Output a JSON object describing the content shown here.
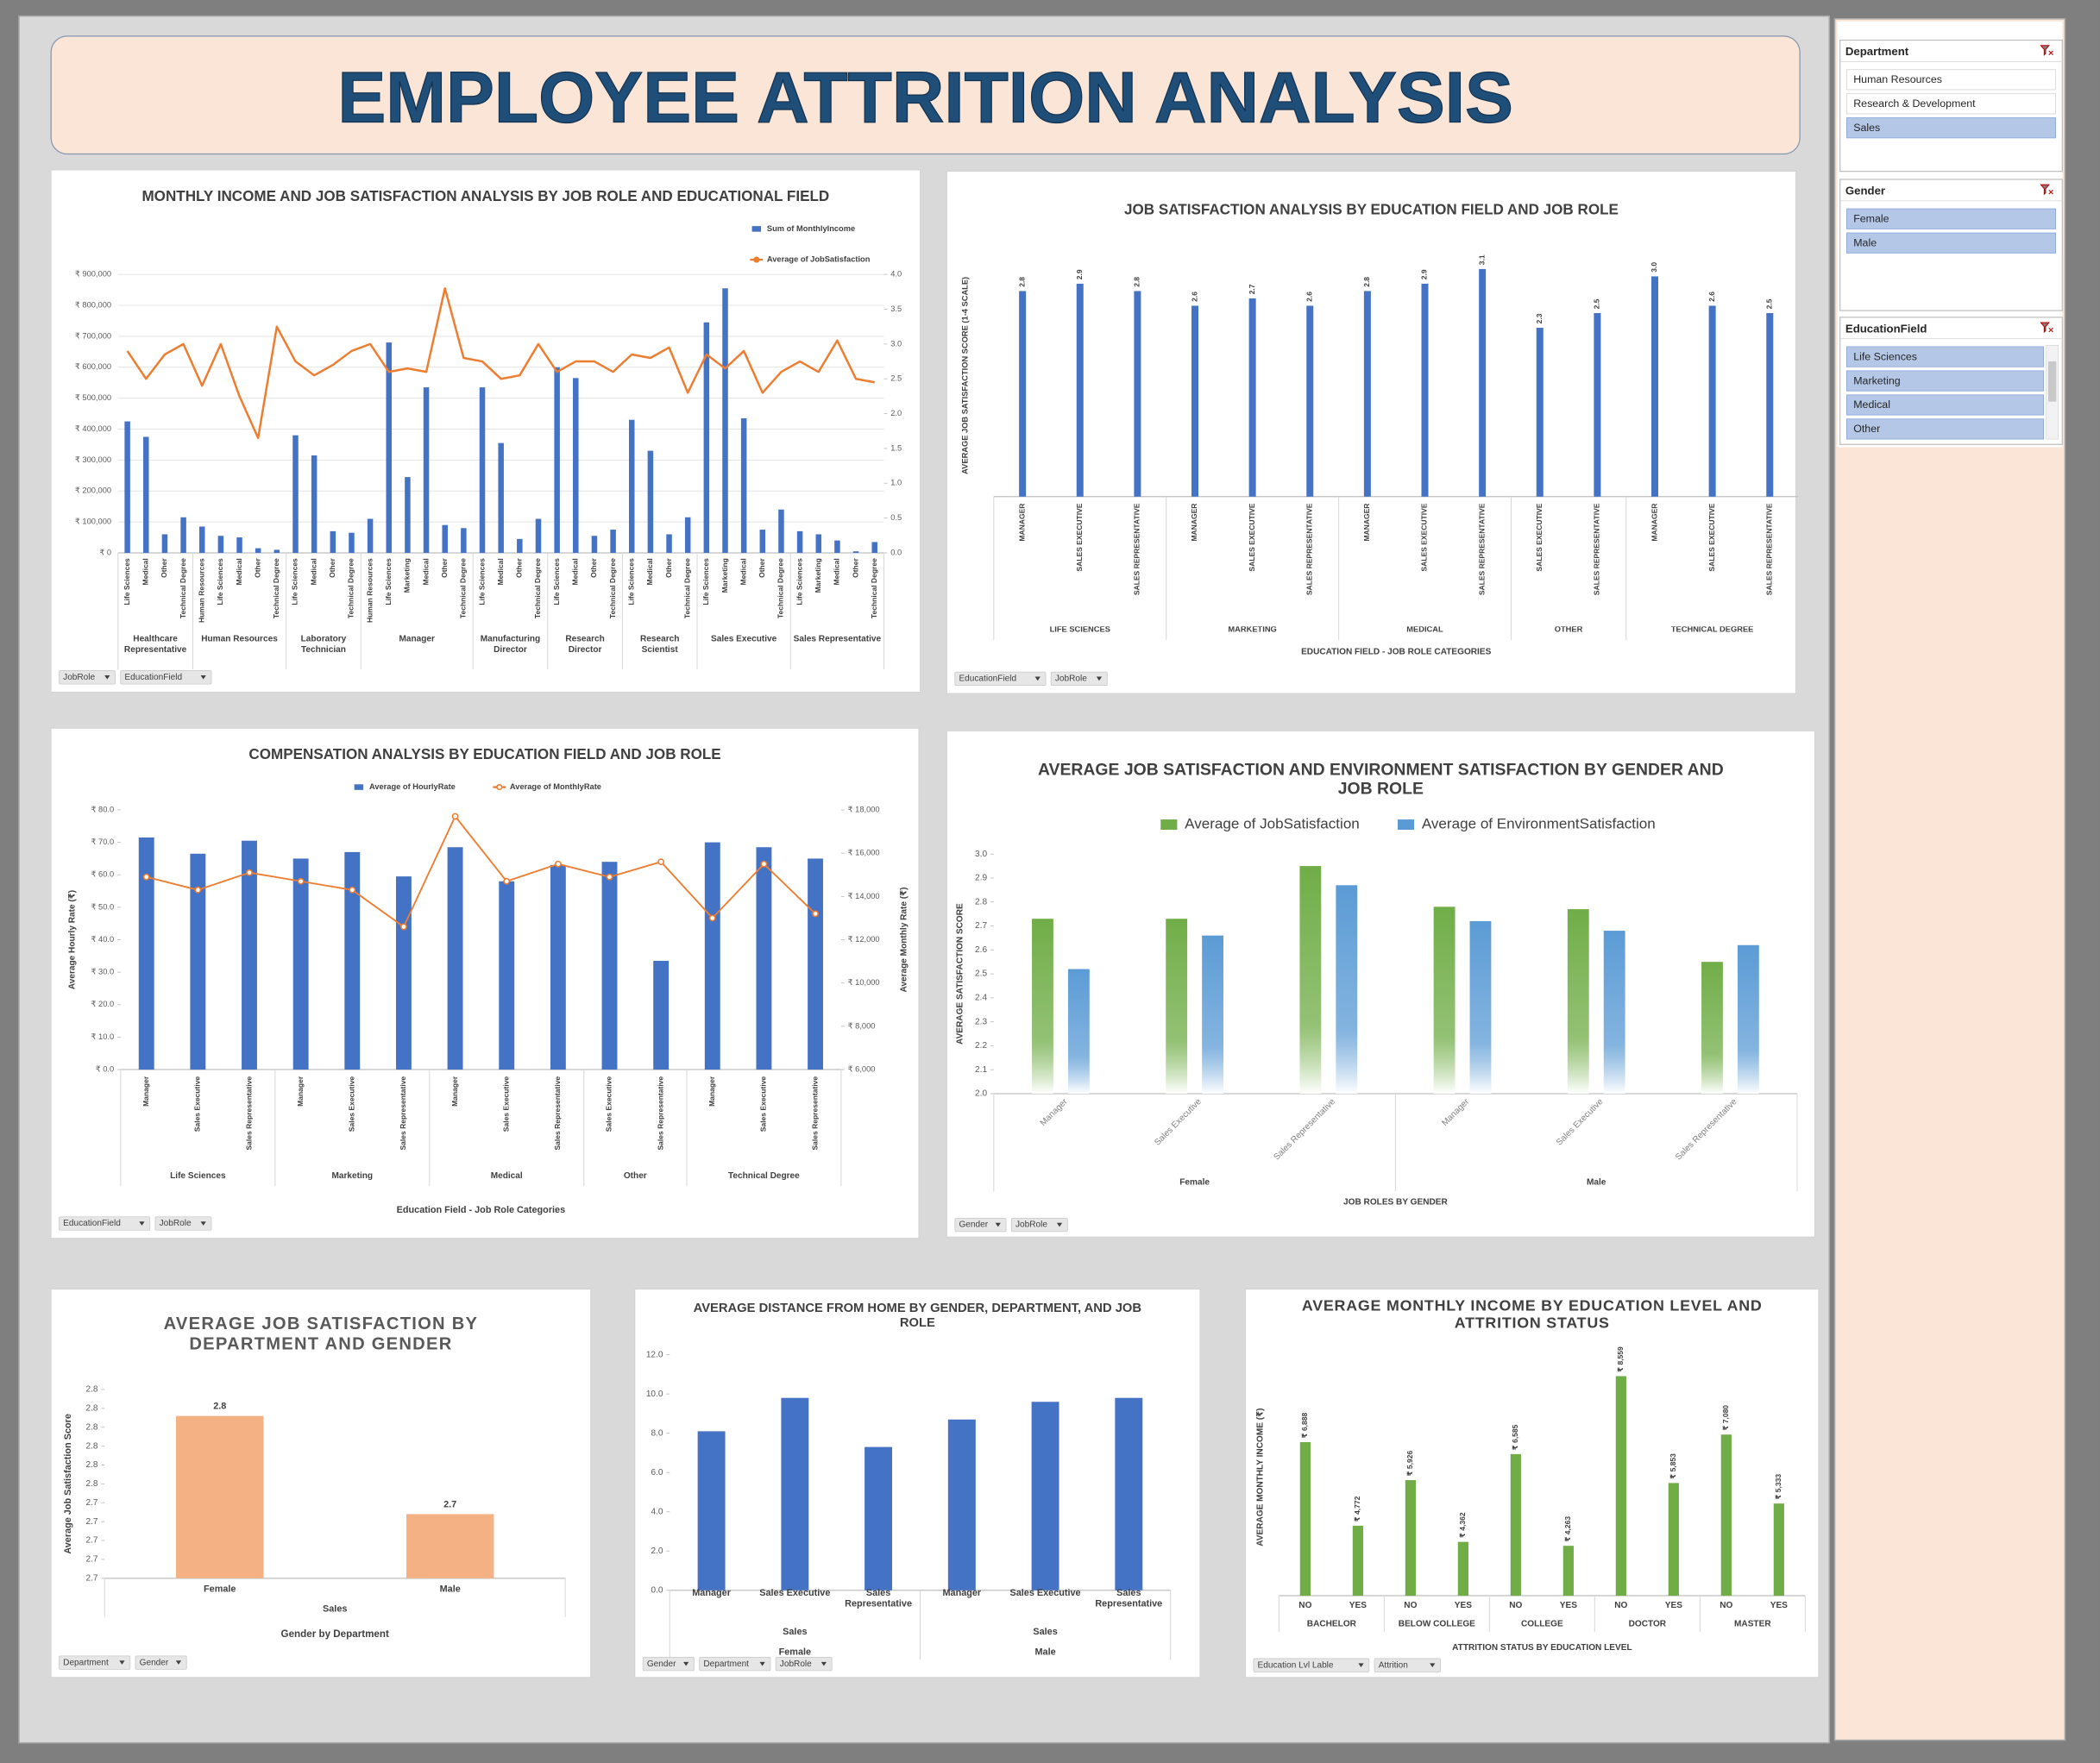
{
  "header": {
    "title": "EMPLOYEE ATTRITION ANALYSIS"
  },
  "slicers": [
    {
      "title": "Department",
      "items": [
        {
          "label": "Human Resources",
          "selected": false
        },
        {
          "label": "Research & Development",
          "selected": false
        },
        {
          "label": "Sales",
          "selected": true
        }
      ]
    },
    {
      "title": "Gender",
      "items": [
        {
          "label": "Female",
          "selected": true
        },
        {
          "label": "Male",
          "selected": true
        }
      ]
    },
    {
      "title": "EducationField",
      "items": [
        {
          "label": "Life Sciences",
          "selected": true
        },
        {
          "label": "Marketing",
          "selected": true
        },
        {
          "label": "Medical",
          "selected": true
        },
        {
          "label": "Other",
          "selected": true
        }
      ]
    }
  ],
  "chart_data": [
    {
      "type": "combo",
      "title": "MONTHLY INCOME AND JOB SATISFACTION ANALYSIS BY JOB ROLE AND EDUCATIONAL FIELD",
      "groups": [
        {
          "name": "Healthcare Representative",
          "categories": [
            "Life Sciences",
            "Medical",
            "Other",
            "Technical Degree"
          ]
        },
        {
          "name": "Human Resources",
          "categories": [
            "Human Resources",
            "Life Sciences",
            "Medical",
            "Other",
            "Technical Degree"
          ]
        },
        {
          "name": "Laboratory Technician",
          "categories": [
            "Life Sciences",
            "Medical",
            "Other",
            "Technical Degree"
          ]
        },
        {
          "name": "Manager",
          "categories": [
            "Human Resources",
            "Life Sciences",
            "Marketing",
            "Medical",
            "Other",
            "Technical Degree"
          ]
        },
        {
          "name": "Manufacturing Director",
          "categories": [
            "Life Sciences",
            "Medical",
            "Other",
            "Technical Degree"
          ]
        },
        {
          "name": "Research Director",
          "categories": [
            "Life Sciences",
            "Medical",
            "Other",
            "Technical Degree"
          ]
        },
        {
          "name": "Research Scientist",
          "categories": [
            "Life Sciences",
            "Medical",
            "Other",
            "Technical Degree"
          ]
        },
        {
          "name": "Sales Executive",
          "categories": [
            "Life Sciences",
            "Marketing",
            "Medical",
            "Other",
            "Technical Degree"
          ]
        },
        {
          "name": "Sales Representative",
          "categories": [
            "Life Sciences",
            "Marketing",
            "Medical",
            "Other",
            "Technical Degree"
          ]
        }
      ],
      "series": [
        {
          "name": "Sum of MonthlyIncome",
          "color": "#4472c4",
          "values": [
            425000,
            375000,
            60000,
            115000,
            85000,
            55000,
            50000,
            15000,
            10000,
            380000,
            315000,
            70000,
            65000,
            110000,
            680000,
            245000,
            535000,
            90000,
            80000,
            535000,
            355000,
            45000,
            110000,
            600000,
            565000,
            55000,
            75000,
            430000,
            330000,
            60000,
            115000,
            745000,
            855000,
            435000,
            75000,
            140000,
            70000,
            60000,
            40000,
            5000,
            35000
          ]
        },
        {
          "name": "Average of JobSatisfaction",
          "color": "#ed7d31",
          "type": "line",
          "axis": "y2",
          "values": [
            2.9,
            2.5,
            2.85,
            3.0,
            2.4,
            3.0,
            2.25,
            1.65,
            3.25,
            2.75,
            2.55,
            2.7,
            2.9,
            3.0,
            2.6,
            2.65,
            2.6,
            3.8,
            2.8,
            2.75,
            2.5,
            2.55,
            3.0,
            2.6,
            2.75,
            2.75,
            2.6,
            2.85,
            2.8,
            2.95,
            2.3,
            2.85,
            2.65,
            2.9,
            2.3,
            2.6,
            2.75,
            2.6,
            3.05,
            2.5,
            2.45
          ]
        }
      ],
      "ylim": [
        0,
        900000
      ],
      "yticks": [
        {
          "value": 0,
          "label": "₹ 0"
        },
        {
          "value": 100000,
          "label": "₹ 100,000"
        },
        {
          "value": 200000,
          "label": "₹ 200,000"
        },
        {
          "value": 300000,
          "label": "₹ 300,000"
        },
        {
          "value": 400000,
          "label": "₹ 400,000"
        },
        {
          "value": 500000,
          "label": "₹ 500,000"
        },
        {
          "value": 600000,
          "label": "₹ 600,000"
        },
        {
          "value": 700000,
          "label": "₹ 700,000"
        },
        {
          "value": 800000,
          "label": "₹ 800,000"
        },
        {
          "value": 900000,
          "label": "₹ 900,000"
        }
      ],
      "y2lim": [
        0,
        4
      ],
      "y2ticks": [
        {
          "value": 0,
          "label": "0.0"
        },
        0.5,
        {
          "value": 1,
          "label": "1.0"
        },
        1.5,
        {
          "value": 2,
          "label": "2.0"
        },
        2.5,
        {
          "value": 3,
          "label": "3.0"
        },
        3.5,
        {
          "value": 4,
          "label": "4.0"
        }
      ],
      "grid": true,
      "filters": [
        "JobRole",
        "EducationField"
      ]
    },
    {
      "type": "bar",
      "title": "JOB SATISFACTION ANALYSIS BY EDUCATION FIELD AND JOB ROLE",
      "ylabel": "AVERAGE JOB SATISFACTION SCORE (1-4 SCALE)",
      "xlabel": "EDUCATION FIELD - JOB ROLE CATEGORIES",
      "groups": [
        {
          "name": "LIFE SCIENCES",
          "categories": [
            "MANAGER",
            "SALES EXECUTIVE",
            "SALES REPRESENTATIVE"
          ]
        },
        {
          "name": "MARKETING",
          "categories": [
            "MANAGER",
            "SALES EXECUTIVE",
            "SALES REPRESENTATIVE"
          ]
        },
        {
          "name": "MEDICAL",
          "categories": [
            "MANAGER",
            "SALES EXECUTIVE",
            "SALES REPRESENTATIVE"
          ]
        },
        {
          "name": "OTHER",
          "categories": [
            "SALES EXECUTIVE",
            "SALES REPRESENTATIVE"
          ]
        },
        {
          "name": "TECHNICAL DEGREE",
          "categories": [
            "MANAGER",
            "SALES EXECUTIVE",
            "SALES REPRESENTATIVE"
          ]
        }
      ],
      "series": [
        {
          "color": "#4472c4",
          "values": [
            2.8,
            2.9,
            2.8,
            2.6,
            2.7,
            2.6,
            2.8,
            2.9,
            3.1,
            2.3,
            2.5,
            3.0,
            2.6,
            2.5
          ],
          "value_labels": [
            "2.8",
            "2.9",
            "2.8",
            "2.6",
            "2.7",
            "2.6",
            "2.8",
            "2.9",
            "3.1",
            "2.3",
            "2.5",
            "3.0",
            "2.6",
            "2.5"
          ]
        }
      ],
      "ylim": [
        0,
        3.3
      ],
      "filters": [
        "EducationField",
        "JobRole"
      ]
    },
    {
      "type": "combo",
      "title": "COMPENSATION  ANALYSIS BY EDUCATION FIELD AND JOB ROLE",
      "ylabel": "Average Hourly Rate (₹)",
      "y2label": "Average Monthly Rate (₹)",
      "xlabel": "Education Field - Job Role Categories",
      "groups": [
        {
          "name": "Life Sciences",
          "categories": [
            "Manager",
            "Sales Executive",
            "Sales Representative"
          ]
        },
        {
          "name": "Marketing",
          "categories": [
            "Manager",
            "Sales Executive",
            "Sales Representative"
          ]
        },
        {
          "name": "Medical",
          "categories": [
            "Manager",
            "Sales Executive",
            "Sales Representative"
          ]
        },
        {
          "name": "Other",
          "categories": [
            "Sales Executive",
            "Sales Representative"
          ]
        },
        {
          "name": "Technical Degree",
          "categories": [
            "Manager",
            "Sales Executive",
            "Sales Representative"
          ]
        }
      ],
      "series": [
        {
          "name": "Average of HourlyRate",
          "color": "#4472c4",
          "values": [
            71.5,
            66.5,
            70.5,
            65,
            67,
            59.5,
            68.5,
            58,
            63,
            64,
            33.5,
            70,
            68.5,
            65
          ]
        },
        {
          "name": "Average of MonthlyRate",
          "color": "#ed7d31",
          "type": "line",
          "axis": "y2",
          "marker": "circle",
          "values": [
            14900,
            14300,
            15100,
            14700,
            14300,
            12600,
            17700,
            14700,
            15500,
            14900,
            15600,
            13000,
            15500,
            13200
          ]
        }
      ],
      "ylim": [
        0,
        80
      ],
      "yticks": [
        {
          "value": 0,
          "label": "₹ 0.0"
        },
        {
          "value": 10,
          "label": "₹ 10.0"
        },
        {
          "value": 20,
          "label": "₹ 20.0"
        },
        {
          "value": 30,
          "label": "₹ 30.0"
        },
        {
          "value": 40,
          "label": "₹ 40.0"
        },
        {
          "value": 50,
          "label": "₹ 50.0"
        },
        {
          "value": 60,
          "label": "₹ 60.0"
        },
        {
          "value": 70,
          "label": "₹ 70.0"
        },
        {
          "value": 80,
          "label": "₹ 80.0"
        }
      ],
      "y2lim": [
        6000,
        18000
      ],
      "y2ticks": [
        {
          "value": 6000,
          "label": "₹ 6,000"
        },
        {
          "value": 8000,
          "label": "₹ 8,000"
        },
        {
          "value": 10000,
          "label": "₹ 10,000"
        },
        {
          "value": 12000,
          "label": "₹ 12,000"
        },
        {
          "value": 14000,
          "label": "₹ 14,000"
        },
        {
          "value": 16000,
          "label": "₹ 16,000"
        },
        {
          "value": 18000,
          "label": "₹ 18,000"
        }
      ],
      "filters": [
        "EducationField",
        "JobRole"
      ]
    },
    {
      "type": "bar",
      "title": "AVERAGE JOB SATISFACTION AND ENVIRONMENT SATISFACTION BY GENDER AND JOB ROLE",
      "ylabel": "AVERAGE SATISFACTION SCORE",
      "xlabel": "JOB ROLES BY GENDER",
      "groups": [
        {
          "name": "Female",
          "categories": [
            "Manager",
            "Sales Executive",
            "Sales Representative"
          ]
        },
        {
          "name": "Male",
          "categories": [
            "Manager",
            "Sales Executive",
            "Sales Representative"
          ]
        }
      ],
      "series": [
        {
          "name": "Average of JobSatisfaction",
          "color": "#70ad47",
          "values": [
            2.73,
            2.73,
            2.95,
            2.78,
            2.77,
            2.55
          ]
        },
        {
          "name": "Average of EnvironmentSatisfaction",
          "color": "#5b9bd5",
          "values": [
            2.52,
            2.66,
            2.87,
            2.72,
            2.68,
            2.62
          ]
        }
      ],
      "ylim": [
        2.0,
        3.0
      ],
      "yticks": [
        {
          "value": 2,
          "label": "2.0"
        },
        2.1,
        2.2,
        2.3,
        2.4,
        2.5,
        2.6,
        2.7,
        2.8,
        2.9,
        {
          "value": 3,
          "label": "3.0"
        }
      ],
      "filters": [
        "Gender",
        "JobRole"
      ]
    },
    {
      "type": "bar",
      "title": "AVERAGE JOB SATISFACTION BY DEPARTMENT AND GENDER",
      "ylabel": "Average Job Satisfaction Score",
      "xlabel": "Gender by Department",
      "groups": [
        {
          "name": "Sales",
          "categories": [
            "Female",
            "Male"
          ]
        }
      ],
      "series": [
        {
          "color": "#f4b183",
          "values": [
            2.786,
            2.734
          ],
          "value_labels": [
            "2.8",
            "2.7"
          ]
        }
      ],
      "ylim": [
        2.7,
        2.8
      ],
      "yticks": [
        {
          "value": 2.7,
          "label": "2.7"
        },
        {
          "value": 2.71,
          "label": "2.7"
        },
        {
          "value": 2.72,
          "label": "2.7"
        },
        {
          "value": 2.73,
          "label": "2.7"
        },
        {
          "value": 2.74,
          "label": "2.7"
        },
        {
          "value": 2.75,
          "label": "2.8"
        },
        {
          "value": 2.76,
          "label": "2.8"
        },
        {
          "value": 2.77,
          "label": "2.8"
        },
        {
          "value": 2.78,
          "label": "2.8"
        },
        {
          "value": 2.79,
          "label": "2.8"
        },
        {
          "value": 2.8,
          "label": "2.8"
        }
      ],
      "filters": [
        "Department",
        "Gender"
      ]
    },
    {
      "type": "bar",
      "title": "AVERAGE DISTANCE FROM HOME BY GENDER, DEPARTMENT, AND JOB ROLE",
      "groups": [
        {
          "name": "Female",
          "groups": [
            {
              "name": "Sales",
              "categories": [
                "Manager",
                "Sales Executive",
                "Sales Representative"
              ]
            }
          ]
        },
        {
          "name": "Male",
          "groups": [
            {
              "name": "Sales",
              "categories": [
                "Manager",
                "Sales Executive",
                "Sales Representative"
              ]
            }
          ]
        }
      ],
      "series": [
        {
          "color": "#4472c4",
          "values": [
            8.1,
            9.8,
            7.3,
            8.7,
            9.6,
            9.8
          ]
        }
      ],
      "ylim": [
        0,
        12
      ],
      "yticks": [
        {
          "value": 0,
          "label": "0.0"
        },
        {
          "value": 2,
          "label": "2.0"
        },
        {
          "value": 4,
          "label": "4.0"
        },
        {
          "value": 6,
          "label": "6.0"
        },
        {
          "value": 8,
          "label": "8.0"
        },
        {
          "value": 10,
          "label": "10.0"
        },
        {
          "value": 12,
          "label": "12.0"
        }
      ],
      "filters": [
        "Gender",
        "Department",
        "JobRole"
      ]
    },
    {
      "type": "bar",
      "title": "AVERAGE MONTHLY INCOME BY EDUCATION LEVEL AND ATTRITION STATUS",
      "ylabel": "AVERAGE MONTHLY INCOME (₹)",
      "xlabel": "ATTRITION STATUS BY EDUCATION LEVEL",
      "groups": [
        {
          "name": "BACHELOR",
          "categories": [
            "NO",
            "YES"
          ]
        },
        {
          "name": "BELOW COLLEGE",
          "categories": [
            "NO",
            "YES"
          ]
        },
        {
          "name": "COLLEGE",
          "categories": [
            "NO",
            "YES"
          ]
        },
        {
          "name": "DOCTOR",
          "categories": [
            "NO",
            "YES"
          ]
        },
        {
          "name": "MASTER",
          "categories": [
            "NO",
            "YES"
          ]
        }
      ],
      "series": [
        {
          "color": "#70ad47",
          "values": [
            6888,
            4772,
            5926,
            4362,
            6585,
            4263,
            8559,
            5853,
            7080,
            5333
          ],
          "value_labels": [
            "₹ 6,888",
            "₹ 4,772",
            "₹ 5,926",
            "₹ 4,362",
            "₹ 6,585",
            "₹ 4,263",
            "₹ 8,559",
            "₹ 5,853",
            "₹ 7,080",
            "₹ 5,333"
          ]
        }
      ],
      "ylim": [
        3000,
        9000
      ],
      "filters": [
        "Education Lvl Lable",
        "Attrition"
      ]
    }
  ]
}
